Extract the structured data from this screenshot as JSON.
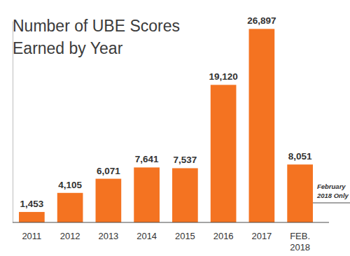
{
  "chart_data": {
    "type": "bar",
    "title": "Number of UBE Scores Earned by Year",
    "categories": [
      "2011",
      "2012",
      "2013",
      "2014",
      "2015",
      "2016",
      "2017",
      "FEB. 2018"
    ],
    "values": [
      1453,
      4105,
      6071,
      7641,
      7537,
      19120,
      26897,
      8051
    ],
    "value_labels": [
      "1,453",
      "4,105",
      "6,071",
      "7,641",
      "7,537",
      "19,120",
      "26,897",
      "8,051"
    ],
    "color": "#f47321",
    "ylim": [
      0,
      28000
    ],
    "data_labels": true,
    "tick_labels": "x",
    "grid": false,
    "annotation": "February 2018 Only"
  }
}
